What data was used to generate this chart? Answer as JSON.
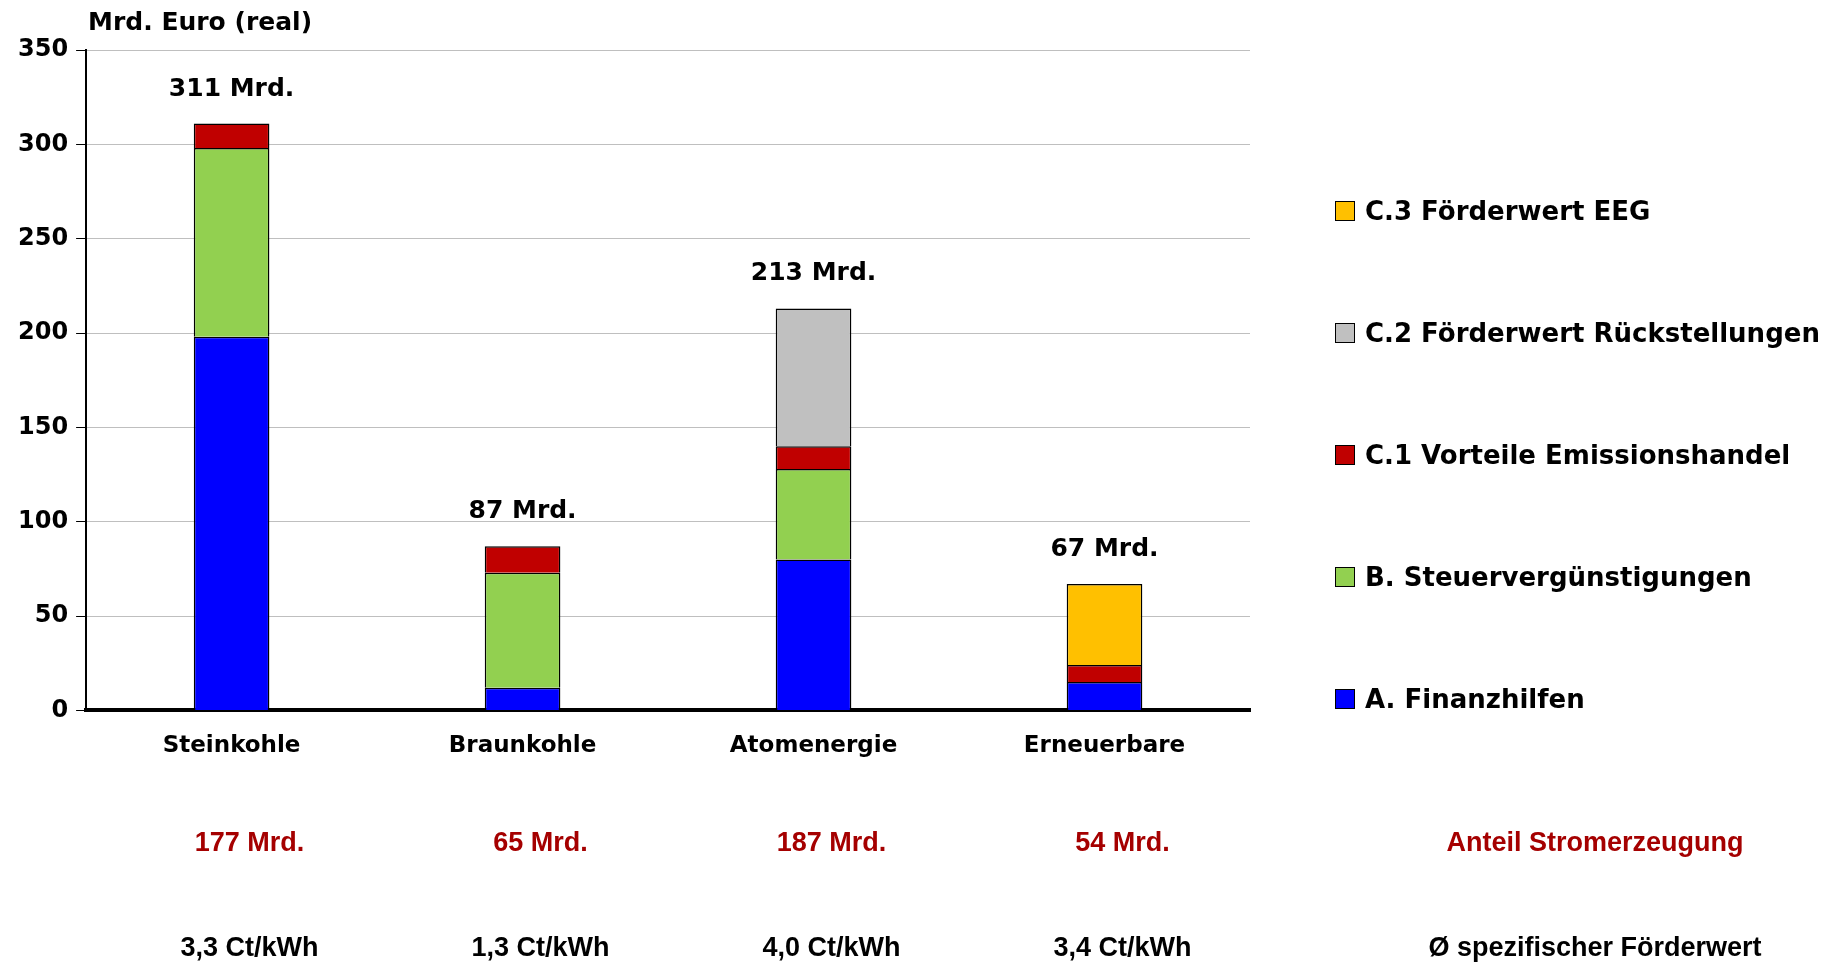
{
  "chart_data": {
    "type": "bar",
    "stacked": true,
    "ylabel": "Mrd. Euro (real)",
    "categories": [
      "Steinkohle",
      "Braunkohle",
      "Atomenergie",
      "Erneuerbare"
    ],
    "series": [
      {
        "name": "A. Finanzhilfen",
        "color": "#0000ff",
        "values": [
          198,
          12,
          80,
          15
        ]
      },
      {
        "name": "B. Steuervergünstigungen",
        "color": "#92d050",
        "values": [
          100,
          61,
          48,
          null
        ]
      },
      {
        "name": "C.1 Vorteile Emissionshandel",
        "color": "#c00000",
        "values": [
          13,
          14,
          12,
          9
        ]
      },
      {
        "name": "C.2 Förderwert Rückstellungen",
        "color": "#c0c0c0",
        "values": [
          null,
          null,
          73,
          null
        ]
      },
      {
        "name": "C.3 Förderwert EEG",
        "color": "#ffc000",
        "values": [
          null,
          null,
          null,
          43
        ]
      }
    ],
    "totals": [
      "311 Mrd.",
      "87 Mrd.",
      "213 Mrd.",
      "67 Mrd."
    ],
    "ylim": [
      0,
      350
    ],
    "yticks": [
      0,
      50,
      100,
      150,
      200,
      250,
      300,
      350
    ],
    "grid": "y",
    "legend": "right",
    "annotations": [
      "177 Mrd.",
      "65 Mrd.",
      "187 Mrd.",
      "54 Mrd.",
      "Anteil Stromerzeugung",
      "3,3 Ct/kWh",
      "1,3 Ct/kWh",
      "4,0 Ct/kWh",
      "3,4 Ct/kWh",
      "Ø spezifischer Förderwert"
    ]
  }
}
